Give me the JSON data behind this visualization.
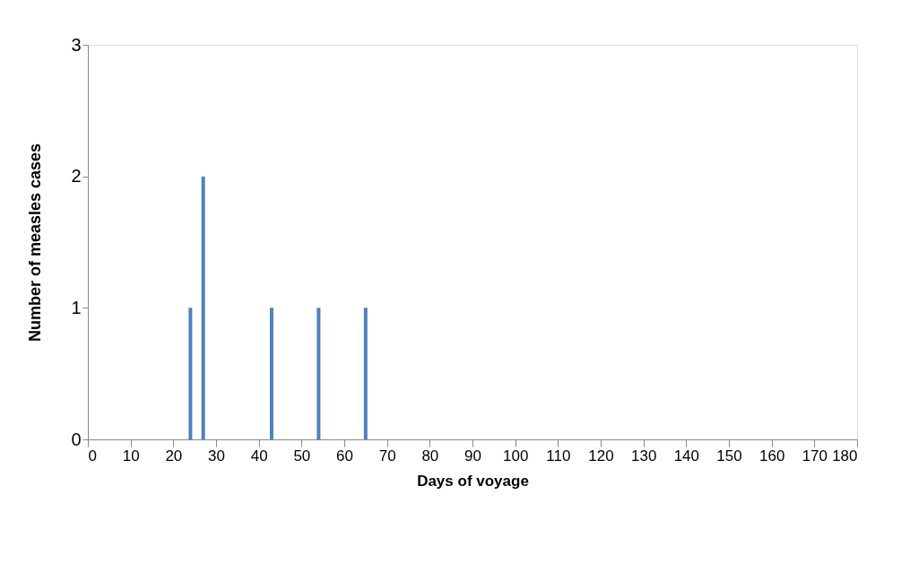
{
  "chart_data": {
    "type": "bar",
    "xlabel": "Days of voyage",
    "ylabel": "Number of measles cases",
    "x": [
      24,
      27,
      43,
      54,
      65
    ],
    "series": [
      {
        "color": "#4f81bd",
        "values": [
          1,
          2,
          1,
          1,
          1
        ]
      }
    ],
    "xlim": [
      0,
      180
    ],
    "xticks": [
      0,
      10,
      20,
      30,
      40,
      50,
      60,
      70,
      80,
      90,
      100,
      110,
      120,
      130,
      140,
      150,
      160,
      170,
      180
    ],
    "ylim": [
      0,
      3
    ],
    "yticks": [
      0,
      1,
      2,
      3
    ],
    "grid": false
  }
}
